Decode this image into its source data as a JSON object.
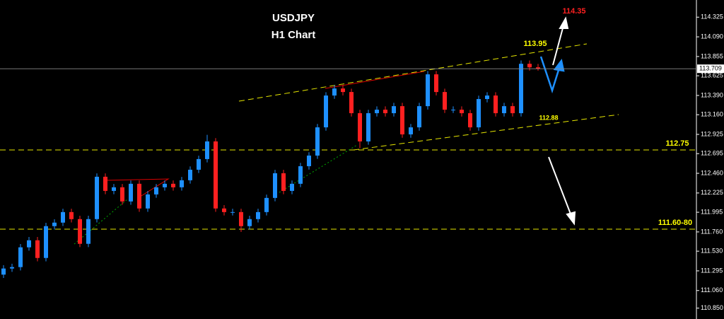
{
  "chart_data": {
    "type": "candlestick",
    "title": "USDJPY",
    "subtitle": "H1 Chart",
    "ylim": [
      110.72,
      114.53
    ],
    "yticks": [
      114.325,
      {
        "value": 114.09,
        "label": "114.090"
      },
      113.855,
      113.625,
      {
        "value": 113.39,
        "label": "113.390"
      },
      {
        "value": 113.16,
        "label": "113.160"
      },
      112.925,
      112.695,
      {
        "value": 112.46,
        "label": "112.460"
      },
      112.225,
      111.995,
      {
        "value": 111.76,
        "label": "111.760"
      },
      {
        "value": 111.53,
        "label": "111.530"
      },
      111.295,
      {
        "value": 111.06,
        "label": "111.060"
      },
      {
        "value": 110.85,
        "label": "110.850"
      }
    ],
    "up_color": "#1e90ff",
    "down_color": "#ff2020",
    "last_price": 113.709,
    "open": [
      111.25,
      111.323,
      111.34,
      111.576,
      111.66,
      111.449,
      111.829,
      111.871,
      111.997,
      111.913,
      111.618,
      111.913,
      112.419,
      112.25,
      112.293,
      112.124,
      112.335,
      112.04,
      112.208,
      112.293,
      112.335,
      112.293,
      112.377,
      112.503,
      112.63,
      112.841,
      112.04,
      111.997,
      111.997,
      111.829,
      111.913,
      111.997,
      112.166,
      112.461,
      112.25,
      112.335,
      112.545,
      112.672,
      113.009,
      113.389,
      113.473,
      113.431,
      113.178,
      112.841,
      113.178,
      113.22,
      113.178,
      113.262,
      112.925,
      113.009,
      113.262,
      113.642,
      113.431,
      113.22,
      113.22,
      113.178,
      113.009,
      113.347,
      113.389,
      113.178,
      113.262,
      113.178,
      113.768,
      113.726
    ],
    "high": [
      111.363,
      111.38,
      111.616,
      111.7,
      111.7,
      111.869,
      111.911,
      112.037,
      112.037,
      111.953,
      111.953,
      112.459,
      112.459,
      112.333,
      112.333,
      112.375,
      112.375,
      112.248,
      112.333,
      112.375,
      112.375,
      112.417,
      112.543,
      112.67,
      112.92,
      112.881,
      112.08,
      112.037,
      112.037,
      111.953,
      112.037,
      112.206,
      112.501,
      112.501,
      112.375,
      112.585,
      112.712,
      113.049,
      113.429,
      113.513,
      113.513,
      113.471,
      113.218,
      113.218,
      113.26,
      113.26,
      113.302,
      113.302,
      113.049,
      113.302,
      113.682,
      113.682,
      113.471,
      113.26,
      113.26,
      113.218,
      113.387,
      113.429,
      113.429,
      113.302,
      113.302,
      113.808,
      113.808,
      113.766
    ],
    "low": [
      111.21,
      111.283,
      111.3,
      111.536,
      111.409,
      111.409,
      111.789,
      111.831,
      111.873,
      111.578,
      111.578,
      111.873,
      112.21,
      112.21,
      112.084,
      112.084,
      112.0,
      112.0,
      112.168,
      112.253,
      112.253,
      112.253,
      112.337,
      112.463,
      112.59,
      112.0,
      111.957,
      111.957,
      111.76,
      111.789,
      111.873,
      111.957,
      112.126,
      112.21,
      112.21,
      112.295,
      112.505,
      112.632,
      112.969,
      113.349,
      113.391,
      113.138,
      112.76,
      112.801,
      113.138,
      113.138,
      113.138,
      112.885,
      112.885,
      112.969,
      113.222,
      113.391,
      113.18,
      113.18,
      113.138,
      112.969,
      112.969,
      113.307,
      113.138,
      113.138,
      113.138,
      113.138,
      113.686,
      113.686
    ],
    "close": [
      111.323,
      111.34,
      111.576,
      111.66,
      111.449,
      111.829,
      111.871,
      111.997,
      111.913,
      111.618,
      111.913,
      112.419,
      112.25,
      112.293,
      112.124,
      112.335,
      112.04,
      112.208,
      112.293,
      112.335,
      112.293,
      112.377,
      112.503,
      112.63,
      112.841,
      112.04,
      111.997,
      111.997,
      111.829,
      111.913,
      111.997,
      112.166,
      112.461,
      112.25,
      112.335,
      112.545,
      112.672,
      113.009,
      113.389,
      113.473,
      113.431,
      113.178,
      112.841,
      113.178,
      113.22,
      113.178,
      113.262,
      112.925,
      113.009,
      113.262,
      113.642,
      113.431,
      113.22,
      113.22,
      113.178,
      113.009,
      113.347,
      113.389,
      113.178,
      113.262,
      113.178,
      113.768,
      113.726,
      113.709
    ],
    "annotations": [
      {
        "text": "113.95"
      },
      {
        "text": "112.88"
      },
      {
        "text": "114.35"
      },
      {
        "text": "112.75"
      },
      {
        "text": "111.60-80"
      }
    ]
  }
}
